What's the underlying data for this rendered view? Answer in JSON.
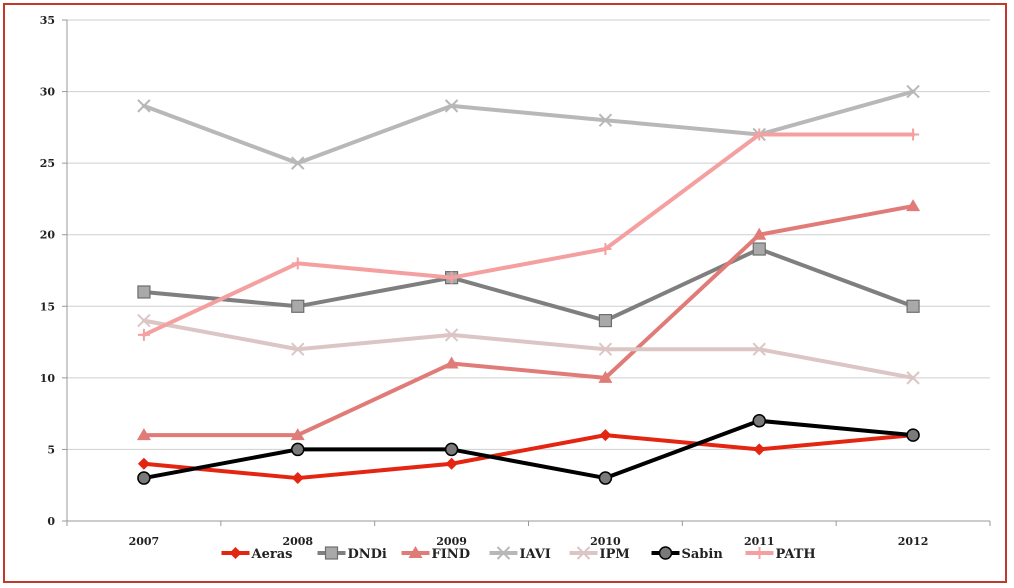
{
  "chart_data": {
    "type": "line",
    "x": [
      "2007",
      "2008",
      "2009",
      "2010",
      "2011",
      "2012"
    ],
    "ylim": [
      0,
      35
    ],
    "yticks": [
      0,
      5,
      10,
      15,
      20,
      25,
      30,
      35
    ],
    "grid": true,
    "legend_position": "bottom",
    "series": [
      {
        "name": "Aeras",
        "values": [
          4,
          3,
          4,
          6,
          5,
          6
        ],
        "color": "#e32512",
        "marker": "diamond"
      },
      {
        "name": "DNDi",
        "values": [
          16,
          15,
          17,
          14,
          19,
          15
        ],
        "color": "#7f7f7f",
        "marker": "square"
      },
      {
        "name": "FIND",
        "values": [
          6,
          6,
          11,
          10,
          20,
          22
        ],
        "color": "#e07b78",
        "marker": "triangle"
      },
      {
        "name": "IAVI",
        "values": [
          29,
          25,
          29,
          28,
          27,
          30
        ],
        "color": "#b8b8b8",
        "marker": "x"
      },
      {
        "name": "IPM",
        "values": [
          14,
          12,
          13,
          12,
          12,
          10
        ],
        "color": "#dcc5c5",
        "marker": "x"
      },
      {
        "name": "Sabin",
        "values": [
          3,
          5,
          5,
          3,
          7,
          6
        ],
        "color": "#000000",
        "marker": "circle"
      },
      {
        "name": "PATH",
        "values": [
          13,
          18,
          17,
          19,
          27,
          27
        ],
        "color": "#f5a0a0",
        "marker": "plus"
      }
    ]
  }
}
